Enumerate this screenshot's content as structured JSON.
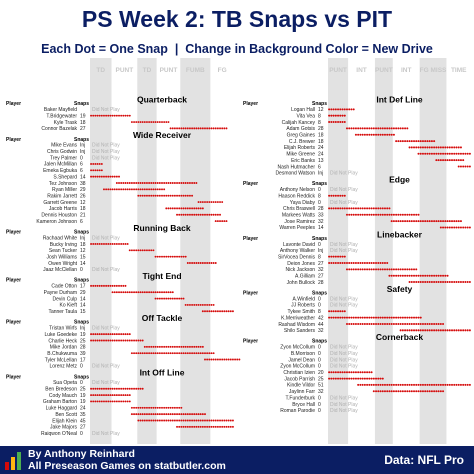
{
  "title": "PS Week 2: TB Snaps vs PIT",
  "subtitle": "Each Dot = One Snap  |  Change in Background Color = New Drive",
  "footer": {
    "author": "By Anthony Reinhard",
    "site": "All Preseason Games on statbutler.com",
    "source": "Data: NFL Pro"
  },
  "colors": {
    "dot": "#d50a0a",
    "navy": "#0b1e63",
    "shade": "#e2e2e2",
    "noplay": "#b0b0b0"
  },
  "chart_data": {
    "type": "scatter",
    "drive_labels": [
      {
        "label": "TD",
        "left": {
          "side": "off",
          "drive": 1
        }
      },
      {
        "label": "PUNT",
        "left": {
          "side": "off",
          "drive": 2
        }
      },
      {
        "label": "TD",
        "left": {
          "side": "off",
          "drive": 3
        }
      },
      {
        "label": "PUNT",
        "left": {
          "side": "off",
          "drive": 4
        }
      },
      {
        "label": "FUMB",
        "left": {
          "side": "off",
          "drive": 5
        }
      },
      {
        "label": "FG",
        "left": {
          "side": "off",
          "drive": 6
        }
      },
      {
        "label": "PUNT",
        "left": {
          "side": "def",
          "drive": 1
        }
      },
      {
        "label": "INT",
        "left": {
          "side": "def",
          "drive": 2
        }
      },
      {
        "label": "PUNT",
        "left": {
          "side": "def",
          "drive": 3
        }
      },
      {
        "label": "INT",
        "left": {
          "side": "def",
          "drive": 4
        }
      },
      {
        "label": "FG MISS",
        "left": {
          "side": "def",
          "drive": 5
        }
      },
      {
        "label": "TIME",
        "left": {
          "side": "def",
          "drive": 6
        }
      }
    ],
    "offense": {
      "total_snaps": 67,
      "drives": [
        10,
        12,
        9,
        11,
        14,
        11
      ],
      "groups": [
        {
          "name": "Quarterback",
          "players": [
            {
              "player": "Baker Mayfield",
              "snaps": "",
              "plays": 0
            },
            {
              "player": "T.Bridgewater",
              "snaps": "19",
              "plays": 19,
              "start": 0
            },
            {
              "player": "Kyle Trask",
              "snaps": "18",
              "plays": 18,
              "start": 19
            },
            {
              "player": "Connor Bazelak",
              "snaps": "27",
              "plays": 27,
              "start": 37
            }
          ]
        },
        {
          "name": "Wide Receiver",
          "players": [
            {
              "player": "Mike Evans",
              "snaps": "Inj",
              "plays": 0
            },
            {
              "player": "Chris Godwin",
              "snaps": "Inj",
              "plays": 0
            },
            {
              "player": "Trey Palmer",
              "snaps": "0",
              "plays": 0
            },
            {
              "player": "Jalen McMillan",
              "snaps": "6",
              "plays": 6,
              "start": 0
            },
            {
              "player": "Emeka Egbuka",
              "snaps": "6",
              "plays": 6,
              "start": 0
            },
            {
              "player": "S.Shepard",
              "snaps": "14",
              "plays": 14,
              "start": 0
            },
            {
              "player": "Tez Johnson",
              "snaps": "38",
              "plays": 38,
              "start": 12
            },
            {
              "player": "Ryan Miller",
              "snaps": "29",
              "plays": 29,
              "start": 6
            },
            {
              "player": "Rakim Jarrett",
              "snaps": "26",
              "plays": 26,
              "start": 22
            },
            {
              "player": "Garrett Greene",
              "snaps": "12",
              "plays": 12,
              "start": 50
            },
            {
              "player": "Jacob Harris",
              "snaps": "18",
              "plays": 18,
              "start": 35
            },
            {
              "player": "Dennis Houston",
              "snaps": "21",
              "plays": 21,
              "start": 40
            },
            {
              "player": "Kameron Johnson",
              "snaps": "6",
              "plays": 6,
              "start": 58
            }
          ]
        },
        {
          "name": "Running Back",
          "players": [
            {
              "player": "Rachaad White",
              "snaps": "Inj",
              "plays": 0
            },
            {
              "player": "Bucky Irving",
              "snaps": "18",
              "plays": 18,
              "start": 0
            },
            {
              "player": "Sean Tucker",
              "snaps": "12",
              "plays": 12,
              "start": 18
            },
            {
              "player": "Josh Williams",
              "snaps": "15",
              "plays": 15,
              "start": 30
            },
            {
              "player": "Owen Wright",
              "snaps": "14",
              "plays": 14,
              "start": 45
            },
            {
              "player": "Jaaz McClellan",
              "snaps": "0",
              "plays": 0
            }
          ]
        },
        {
          "name": "Tight End",
          "players": [
            {
              "player": "Cade Otton",
              "snaps": "17",
              "plays": 17,
              "start": 0
            },
            {
              "player": "Payne Durham",
              "snaps": "29",
              "plays": 29,
              "start": 10
            },
            {
              "player": "Devin Culp",
              "snaps": "14",
              "plays": 14,
              "start": 30
            },
            {
              "player": "Ko Kieft",
              "snaps": "14",
              "plays": 14,
              "start": 44
            },
            {
              "player": "Tanner Taula",
              "snaps": "15",
              "plays": 15,
              "start": 52
            }
          ]
        },
        {
          "name": "Off Tackle",
          "players": [
            {
              "player": "Tristan Wirfs",
              "snaps": "Inj",
              "plays": 0
            },
            {
              "player": "Luke Goedeke",
              "snaps": "19",
              "plays": 19,
              "start": 0
            },
            {
              "player": "Charlie Heck",
              "snaps": "25",
              "plays": 25,
              "start": 0
            },
            {
              "player": "Mike Jordan",
              "snaps": "28",
              "plays": 28,
              "start": 25
            },
            {
              "player": "B.Chukwuma",
              "snaps": "39",
              "plays": 39,
              "start": 19
            },
            {
              "player": "Tyler McLellan",
              "snaps": "17",
              "plays": 17,
              "start": 53
            },
            {
              "player": "Lorenz Metz",
              "snaps": "0",
              "plays": 0
            }
          ]
        },
        {
          "name": "Int Off Line",
          "players": [
            {
              "player": "Sua Opeta",
              "snaps": "0",
              "plays": 0
            },
            {
              "player": "Ben Bredeson",
              "snaps": "25",
              "plays": 25,
              "start": 0
            },
            {
              "player": "Cody Mauch",
              "snaps": "19",
              "plays": 19,
              "start": 0
            },
            {
              "player": "Graham Barton",
              "snaps": "19",
              "plays": 19,
              "start": 0
            },
            {
              "player": "Luke Haggard",
              "snaps": "24",
              "plays": 24,
              "start": 19
            },
            {
              "player": "Ben Scott",
              "snaps": "35",
              "plays": 35,
              "start": 19
            },
            {
              "player": "Elijah Klein",
              "snaps": "45",
              "plays": 45,
              "start": 22
            },
            {
              "player": "Jake Majors",
              "snaps": "27",
              "plays": 27,
              "start": 40
            },
            {
              "player": "Raiqwon O'Neal",
              "snaps": "0",
              "plays": 0
            }
          ]
        }
      ]
    },
    "defense": {
      "total_snaps": 64,
      "drives": [
        9,
        12,
        8,
        12,
        12,
        11
      ],
      "groups": [
        {
          "name": "Int Def Line",
          "players": [
            {
              "player": "Logan Hall",
              "snaps": "12",
              "plays": 12,
              "start": 0
            },
            {
              "player": "Vita Vea",
              "snaps": "8",
              "plays": 8,
              "start": 0
            },
            {
              "player": "Calijah Kancey",
              "snaps": "8",
              "plays": 8,
              "start": 0
            },
            {
              "player": "Adam Gotsis",
              "snaps": "28",
              "plays": 28,
              "start": 8
            },
            {
              "player": "Greg Gaines",
              "snaps": "18",
              "plays": 18,
              "start": 12
            },
            {
              "player": "C.J. Brewer",
              "snaps": "18",
              "plays": 18,
              "start": 30
            },
            {
              "player": "Elijah Roberts",
              "snaps": "24",
              "plays": 24,
              "start": 36
            },
            {
              "player": "Mike Greene",
              "snaps": "24",
              "plays": 24,
              "start": 40
            },
            {
              "player": "Eric Banks",
              "snaps": "13",
              "plays": 13,
              "start": 48
            },
            {
              "player": "Nash Hutmacher",
              "snaps": "6",
              "plays": 6,
              "start": 58
            },
            {
              "player": "Desmond Watson",
              "snaps": "Inj",
              "plays": 0
            }
          ]
        },
        {
          "name": "Edge",
          "players": [
            {
              "player": "Anthony Nelson",
              "snaps": "0",
              "plays": 0
            },
            {
              "player": "Haason Reddick",
              "snaps": "8",
              "plays": 8,
              "start": 0
            },
            {
              "player": "Yaya Diaby",
              "snaps": "0",
              "plays": 0
            },
            {
              "player": "Chris Braswell",
              "snaps": "28",
              "plays": 28,
              "start": 0
            },
            {
              "player": "Markees Watts",
              "snaps": "33",
              "plays": 33,
              "start": 8
            },
            {
              "player": "Jose Ramirez",
              "snaps": "32",
              "plays": 32,
              "start": 28
            },
            {
              "player": "Warren Peeples",
              "snaps": "14",
              "plays": 14,
              "start": 50
            }
          ]
        },
        {
          "name": "Linebacker",
          "players": [
            {
              "player": "Lavonte David",
              "snaps": "0",
              "plays": 0
            },
            {
              "player": "Anthony Walker",
              "snaps": "Inj",
              "plays": 0
            },
            {
              "player": "SirVocea Dennis",
              "snaps": "8",
              "plays": 8,
              "start": 0
            },
            {
              "player": "Deion Jones",
              "snaps": "27",
              "plays": 27,
              "start": 0
            },
            {
              "player": "Nick Jackson",
              "snaps": "32",
              "plays": 32,
              "start": 8
            },
            {
              "player": "A.Gilliam",
              "snaps": "27",
              "plays": 27,
              "start": 27
            },
            {
              "player": "John Bullock",
              "snaps": "28",
              "plays": 28,
              "start": 36
            }
          ]
        },
        {
          "name": "Safety",
          "players": [
            {
              "player": "A.Winfield",
              "snaps": "0",
              "plays": 0
            },
            {
              "player": "JJ Roberts",
              "snaps": "0",
              "plays": 0
            },
            {
              "player": "Tykee Smith",
              "snaps": "8",
              "plays": 8,
              "start": 0
            },
            {
              "player": "K.Merriweather",
              "snaps": "42",
              "plays": 42,
              "start": 0
            },
            {
              "player": "Rashad Wisdom",
              "snaps": "44",
              "plays": 44,
              "start": 8
            },
            {
              "player": "Shilo Sanders",
              "snaps": "32",
              "plays": 32,
              "start": 32
            }
          ]
        },
        {
          "name": "Cornerback",
          "players": [
            {
              "player": "Zyon McCollum",
              "snaps": "0",
              "plays": 0
            },
            {
              "player": "B.Morrison",
              "snaps": "0",
              "plays": 0
            },
            {
              "player": "Jamel Dean",
              "snaps": "0",
              "plays": 0
            },
            {
              "player": "Zyon McCollum",
              "snaps": "0",
              "plays": 0
            },
            {
              "player": "Christian Izien",
              "snaps": "20",
              "plays": 20,
              "start": 0
            },
            {
              "player": "Jacob Parrish",
              "snaps": "25",
              "plays": 25,
              "start": 0
            },
            {
              "player": "Kindle Vildor",
              "snaps": "51",
              "plays": 51,
              "start": 13
            },
            {
              "player": "Jaylinn Farr",
              "snaps": "32",
              "plays": 32,
              "start": 20
            },
            {
              "player": "T.Funderburk",
              "snaps": "0",
              "plays": 0
            },
            {
              "player": "Bryce Hall",
              "snaps": "0",
              "plays": 0
            },
            {
              "player": "Roman Parodie",
              "snaps": "0",
              "plays": 0
            }
          ]
        }
      ]
    },
    "labels": {
      "player": "Player",
      "snaps": "Snaps",
      "did_not_play": "Did Not Play",
      "special_teams": "Special Teams Only"
    }
  }
}
